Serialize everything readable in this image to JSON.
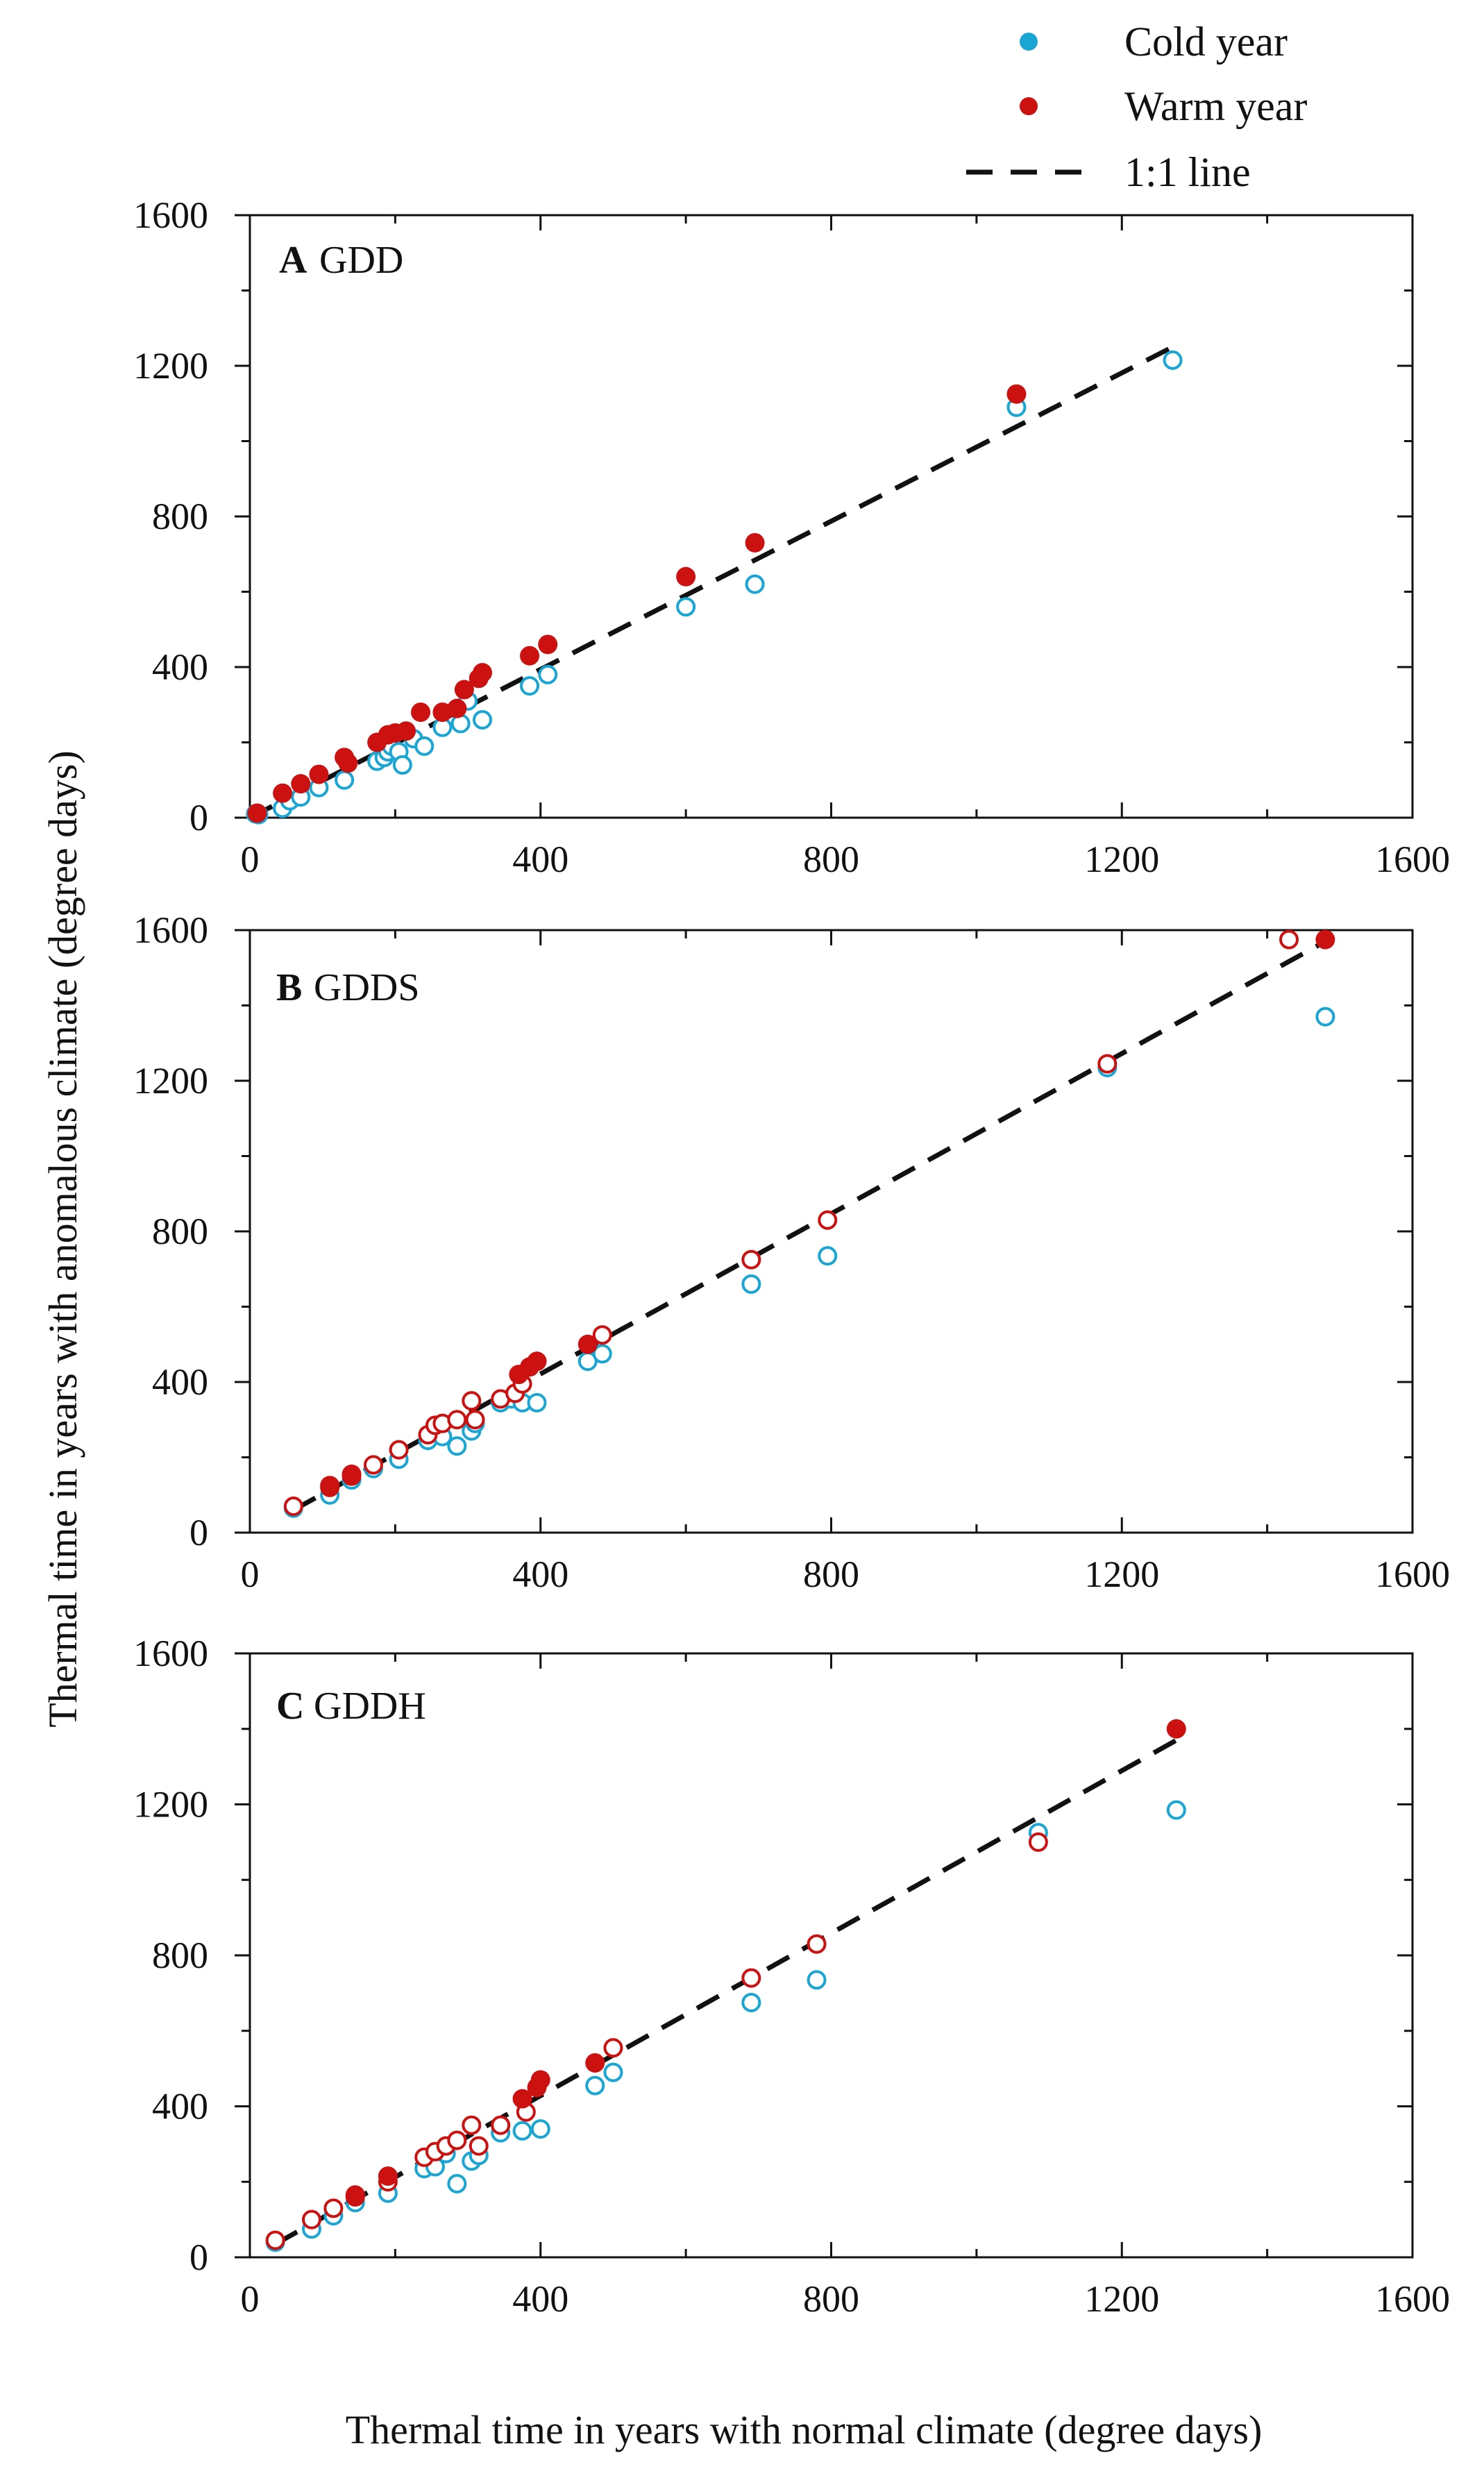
{
  "legend": {
    "items": [
      {
        "label": "Cold year",
        "color": "#1aa6d3",
        "marker": "circle"
      },
      {
        "label": "Warm year",
        "color": "#cc1111",
        "marker": "circle"
      },
      {
        "label": "1:1 line",
        "color": "#111111",
        "marker": "dash"
      }
    ]
  },
  "axes": {
    "xlabel": "Thermal time in years with normal climate (degree days)",
    "ylabel": "Thermal time in years with  anomalous climate (degree days)"
  },
  "colors": {
    "cold": "#1aa6d3",
    "warm": "#cc1111",
    "line": "#111111"
  },
  "chart_data": [
    {
      "type": "scatter",
      "letter": "A",
      "name": "GDD",
      "xlim": [
        0,
        1600
      ],
      "ylim": [
        0,
        1600
      ],
      "xticks": [
        "0",
        "400",
        "800",
        "1200",
        "1600"
      ],
      "yticks": [
        "0",
        "400",
        "800",
        "1200",
        "1600"
      ],
      "one_to_one": [
        [
          0,
          0
        ],
        [
          1270,
          1250
        ]
      ],
      "series": [
        {
          "name": "Cold year",
          "filled": false,
          "color": "#1aa6d3",
          "points": [
            [
              8,
              10
            ],
            [
              12,
              8
            ],
            [
              45,
              25
            ],
            [
              55,
              45
            ],
            [
              70,
              55
            ],
            [
              95,
              80
            ],
            [
              130,
              100
            ],
            [
              175,
              150
            ],
            [
              185,
              160
            ],
            [
              190,
              175
            ],
            [
              195,
              190
            ],
            [
              205,
              175
            ],
            [
              210,
              140
            ],
            [
              225,
              210
            ],
            [
              240,
              190
            ],
            [
              265,
              240
            ],
            [
              290,
              250
            ],
            [
              300,
              310
            ],
            [
              320,
              260
            ],
            [
              385,
              350
            ],
            [
              410,
              380
            ],
            [
              600,
              560
            ],
            [
              695,
              620
            ],
            [
              1055,
              1090
            ],
            [
              1270,
              1215
            ]
          ]
        },
        {
          "name": "Warm year",
          "filled": true,
          "color": "#cc1111",
          "points": [
            [
              10,
              12
            ],
            [
              45,
              65
            ],
            [
              70,
              90
            ],
            [
              95,
              115
            ],
            [
              130,
              160
            ],
            [
              135,
              145
            ],
            [
              175,
              200
            ],
            [
              190,
              220
            ],
            [
              200,
              225
            ],
            [
              215,
              230
            ],
            [
              235,
              280
            ],
            [
              265,
              280
            ],
            [
              285,
              290
            ],
            [
              295,
              340
            ],
            [
              315,
              370
            ],
            [
              320,
              385
            ],
            [
              385,
              430
            ],
            [
              410,
              460
            ],
            [
              600,
              640
            ],
            [
              695,
              730
            ],
            [
              1055,
              1125
            ]
          ]
        }
      ]
    },
    {
      "type": "scatter",
      "letter": "B",
      "name": "GDDS",
      "xlim": [
        0,
        1600
      ],
      "ylim": [
        0,
        1600
      ],
      "xticks": [
        "0",
        "400",
        "800",
        "1200",
        "1600"
      ],
      "yticks": [
        "0",
        "400",
        "800",
        "1200",
        "1600"
      ],
      "one_to_one": [
        [
          60,
          60
        ],
        [
          1480,
          1570
        ]
      ],
      "series": [
        {
          "name": "Cold year",
          "filled": false,
          "color": "#1aa6d3",
          "points": [
            [
              60,
              65
            ],
            [
              110,
              100
            ],
            [
              140,
              140
            ],
            [
              170,
              170
            ],
            [
              205,
              195
            ],
            [
              245,
              245
            ],
            [
              265,
              255
            ],
            [
              285,
              230
            ],
            [
              305,
              270
            ],
            [
              310,
              290
            ],
            [
              345,
              345
            ],
            [
              360,
              355
            ],
            [
              375,
              345
            ],
            [
              395,
              345
            ],
            [
              465,
              455
            ],
            [
              485,
              475
            ],
            [
              690,
              660
            ],
            [
              795,
              735
            ],
            [
              1180,
              1235
            ],
            [
              1480,
              1370
            ]
          ]
        },
        {
          "name": "Warm year (open)",
          "filled": false,
          "color": "#cc1111",
          "points": [
            [
              60,
              70
            ],
            [
              110,
              120
            ],
            [
              140,
              150
            ],
            [
              170,
              180
            ],
            [
              205,
              220
            ],
            [
              245,
              260
            ],
            [
              255,
              285
            ],
            [
              265,
              290
            ],
            [
              285,
              300
            ],
            [
              305,
              350
            ],
            [
              310,
              300
            ],
            [
              345,
              355
            ],
            [
              365,
              370
            ],
            [
              375,
              395
            ],
            [
              485,
              525
            ],
            [
              690,
              725
            ],
            [
              795,
              830
            ],
            [
              1180,
              1245
            ],
            [
              1430,
              1575
            ]
          ]
        },
        {
          "name": "Warm year (filled)",
          "filled": true,
          "color": "#cc1111",
          "points": [
            [
              110,
              125
            ],
            [
              140,
              155
            ],
            [
              370,
              420
            ],
            [
              385,
              440
            ],
            [
              395,
              455
            ],
            [
              465,
              500
            ],
            [
              1480,
              1575
            ]
          ]
        }
      ]
    },
    {
      "type": "scatter",
      "letter": "C",
      "name": "GDDH",
      "xlim": [
        0,
        1600
      ],
      "ylim": [
        0,
        1600
      ],
      "xticks": [
        "0",
        "400",
        "800",
        "1200",
        "1600"
      ],
      "yticks": [
        "0",
        "400",
        "800",
        "1200",
        "1600"
      ],
      "one_to_one": [
        [
          35,
          35
        ],
        [
          1275,
          1370
        ]
      ],
      "series": [
        {
          "name": "Cold year",
          "filled": false,
          "color": "#1aa6d3",
          "points": [
            [
              35,
              40
            ],
            [
              85,
              75
            ],
            [
              115,
              110
            ],
            [
              145,
              145
            ],
            [
              190,
              170
            ],
            [
              240,
              235
            ],
            [
              255,
              240
            ],
            [
              270,
              275
            ],
            [
              285,
              195
            ],
            [
              305,
              255
            ],
            [
              315,
              270
            ],
            [
              345,
              330
            ],
            [
              375,
              335
            ],
            [
              400,
              340
            ],
            [
              475,
              455
            ],
            [
              500,
              490
            ],
            [
              690,
              675
            ],
            [
              780,
              735
            ],
            [
              1085,
              1125
            ],
            [
              1275,
              1185
            ]
          ]
        },
        {
          "name": "Warm year (open)",
          "filled": false,
          "color": "#cc1111",
          "points": [
            [
              35,
              45
            ],
            [
              85,
              100
            ],
            [
              115,
              130
            ],
            [
              145,
              160
            ],
            [
              190,
              200
            ],
            [
              240,
              265
            ],
            [
              255,
              280
            ],
            [
              270,
              295
            ],
            [
              285,
              310
            ],
            [
              305,
              350
            ],
            [
              315,
              295
            ],
            [
              345,
              350
            ],
            [
              380,
              385
            ],
            [
              500,
              555
            ],
            [
              690,
              740
            ],
            [
              780,
              830
            ],
            [
              1085,
              1100
            ]
          ]
        },
        {
          "name": "Warm year (filled)",
          "filled": true,
          "color": "#cc1111",
          "points": [
            [
              145,
              165
            ],
            [
              190,
              215
            ],
            [
              375,
              420
            ],
            [
              395,
              450
            ],
            [
              400,
              470
            ],
            [
              475,
              515
            ],
            [
              1275,
              1400
            ]
          ]
        }
      ]
    }
  ]
}
